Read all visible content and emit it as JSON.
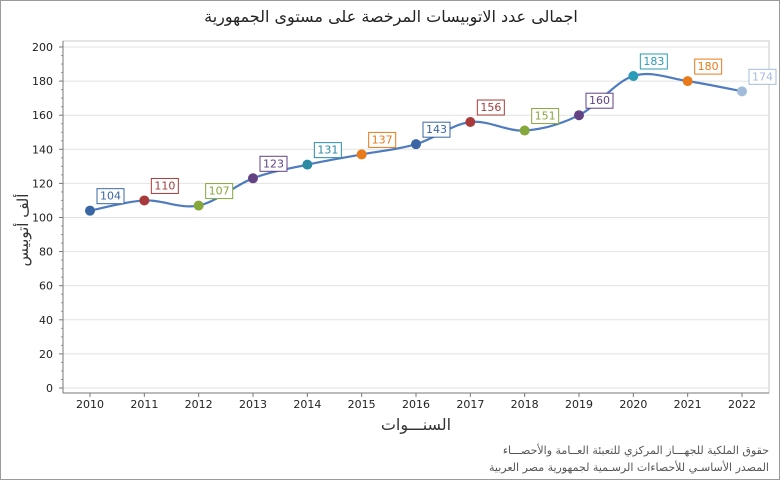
{
  "chart_data": {
    "type": "line",
    "title": "اجمالى عدد الاتوبيسات المرخصة على مستوى الجمهورية",
    "xlabel": "السنـــوات",
    "ylabel": "ألف أتوبيس",
    "categories": [
      "2010",
      "2011",
      "2012",
      "2013",
      "2014",
      "2015",
      "2016",
      "2017",
      "2018",
      "2019",
      "2020",
      "2021",
      "2022"
    ],
    "values": [
      104,
      110,
      107,
      123,
      131,
      137,
      143,
      156,
      151,
      160,
      183,
      180,
      174
    ],
    "ylim": [
      0,
      200
    ],
    "yticks": [
      0,
      20,
      40,
      60,
      80,
      100,
      120,
      140,
      160,
      180,
      200
    ],
    "grid": true,
    "line_color": "#4f7bbf",
    "point_colors": [
      "#3a67a3",
      "#a83a3a",
      "#86a83a",
      "#634283",
      "#2a8ba3",
      "#e87a1a",
      "#3a67a3",
      "#a83a3a",
      "#86a83a",
      "#634283",
      "#2a9bb8",
      "#e87a1a",
      "#a4bcdc"
    ]
  },
  "footer": {
    "line1": "حقوق الملكية للجهـــاز المركزي للتعبئة العــامة والأحصـــاء",
    "line2": "المصدر الأساسـي للأحصاءات الرسـمية لجمهورية مصر العربية"
  }
}
